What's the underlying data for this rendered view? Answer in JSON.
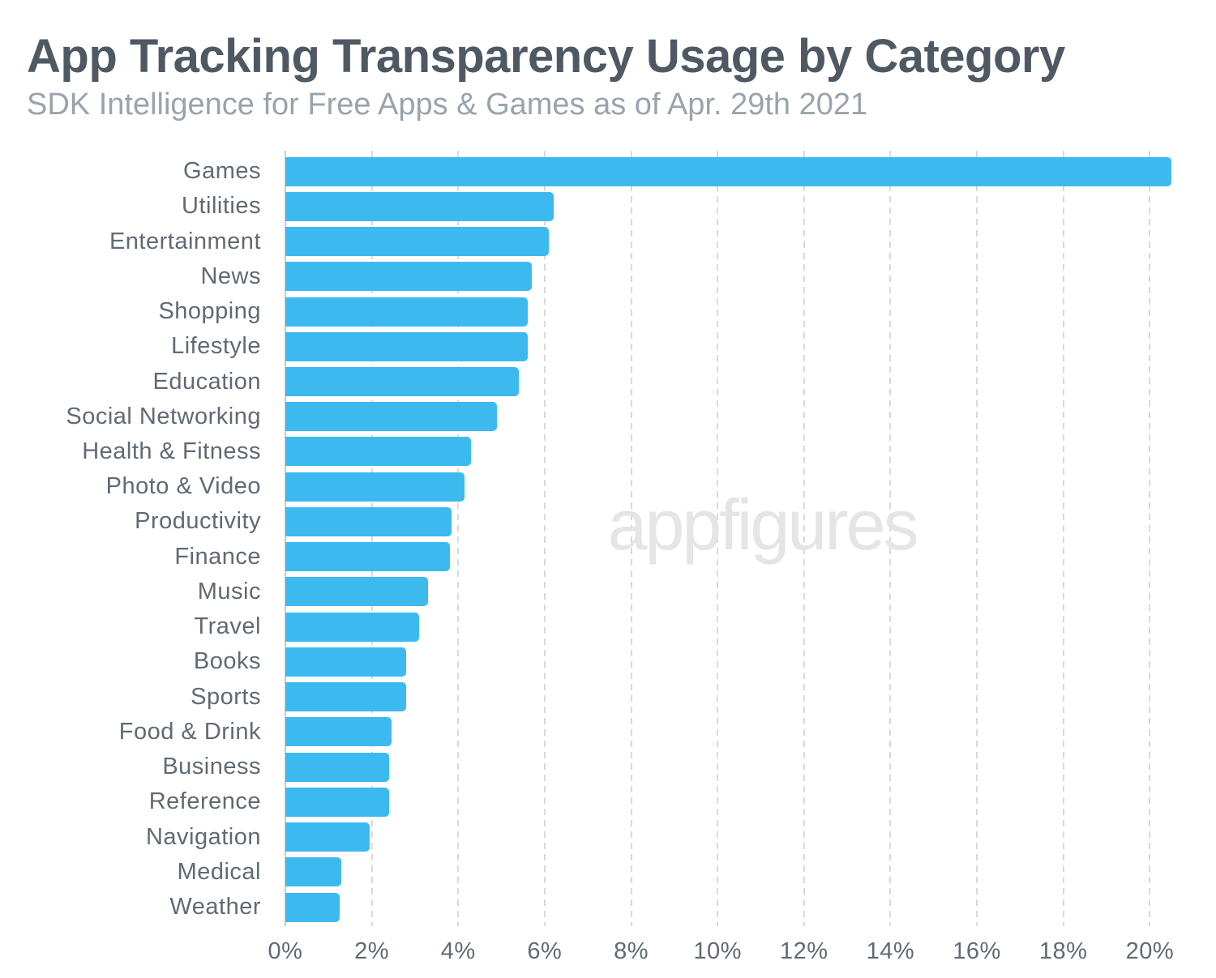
{
  "header": {
    "title": "App Tracking Transparency Usage by Category",
    "subtitle": "SDK Intelligence for Free Apps & Games as of Apr. 29th 2021"
  },
  "watermark": "appfigures",
  "colors": {
    "bar": "#3cbaf0",
    "title_text": "#4f5963",
    "subtitle_text": "#99a3ad",
    "label_text": "#606a74",
    "gridline": "#d8dadc",
    "axis_line": "#c6cacd",
    "watermark_text": "#e4e5e7",
    "background": "#ffffff"
  },
  "chart_data": {
    "type": "bar",
    "orientation": "horizontal",
    "title": "App Tracking Transparency Usage by Category",
    "subtitle": "SDK Intelligence for Free Apps & Games as of Apr. 29th 2021",
    "categories": [
      "Games",
      "Utilities",
      "Entertainment",
      "News",
      "Shopping",
      "Lifestyle",
      "Education",
      "Social Networking",
      "Health & Fitness",
      "Photo & Video",
      "Productivity",
      "Finance",
      "Music",
      "Travel",
      "Books",
      "Sports",
      "Food & Drink",
      "Business",
      "Reference",
      "Navigation",
      "Medical",
      "Weather"
    ],
    "values": [
      20.5,
      6.2,
      6.1,
      5.7,
      5.6,
      5.6,
      5.4,
      4.9,
      4.3,
      4.15,
      3.85,
      3.8,
      3.3,
      3.1,
      2.8,
      2.8,
      2.45,
      2.4,
      2.4,
      1.95,
      1.3,
      1.25
    ],
    "value_unit": "%",
    "xlabel": "",
    "ylabel": "",
    "xlim": [
      0,
      20.8
    ],
    "x_tick_step": 2,
    "x_ticks": [
      "0%",
      "2%",
      "4%",
      "6%",
      "8%",
      "10%",
      "12%",
      "14%",
      "16%",
      "18%",
      "20%"
    ],
    "grid": "vertical-dashed",
    "legend": "none",
    "sort": "descending",
    "bars_labeled": false
  }
}
